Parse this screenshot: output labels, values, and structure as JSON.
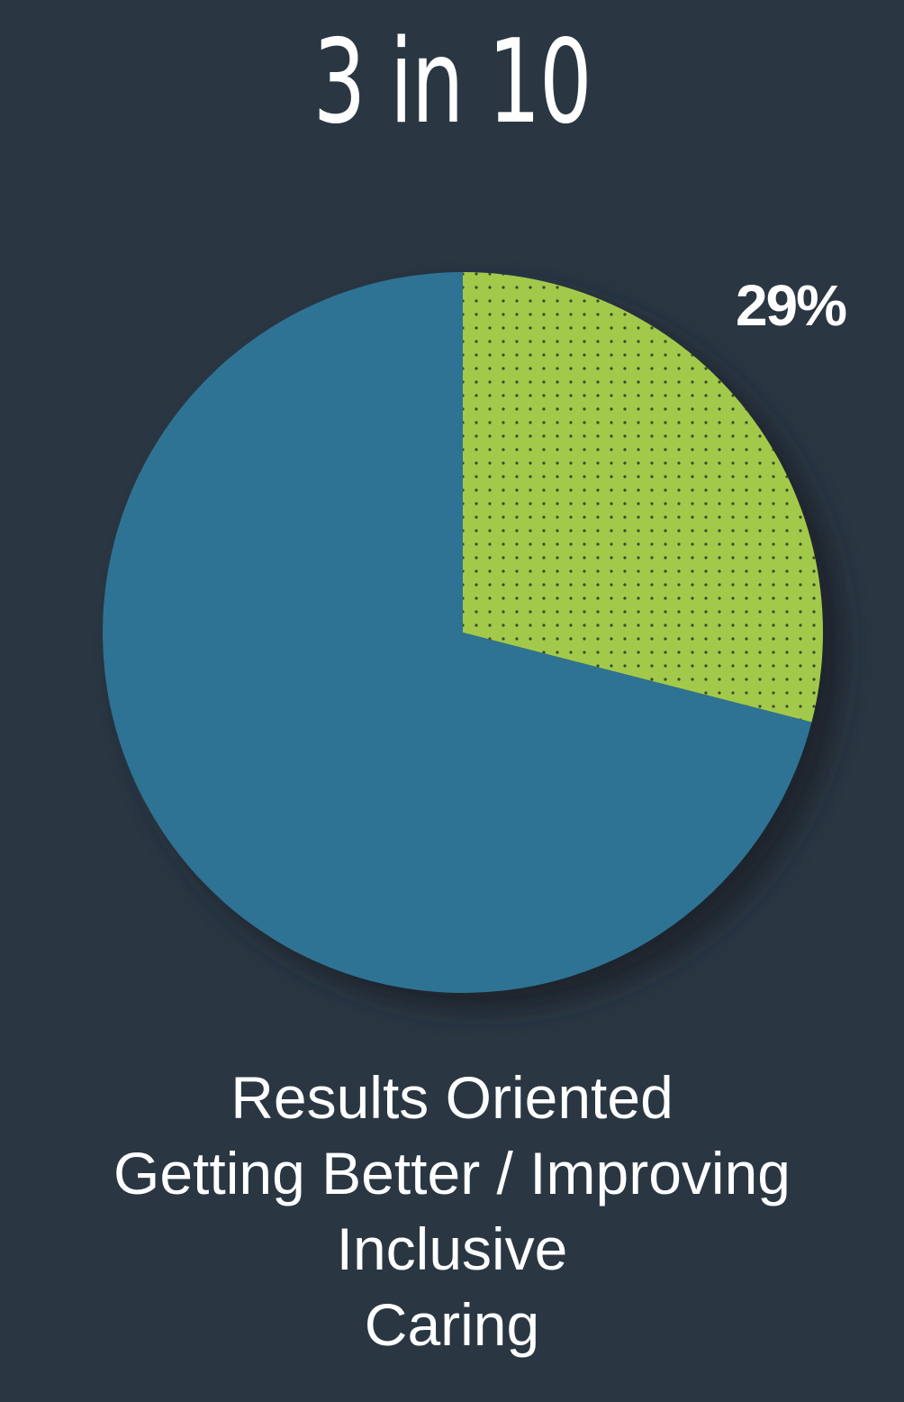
{
  "headline": "3 in 10",
  "chart_data": {
    "type": "pie",
    "slices": [
      {
        "label": "29%",
        "value": 29,
        "color": "#a3c94b",
        "pattern": "dotted",
        "show_label": true
      },
      {
        "label": "",
        "value": 71,
        "color": "#2e7393",
        "pattern": "solid",
        "show_label": false
      }
    ],
    "start_angle": "12 o'clock",
    "direction": "clockwise"
  },
  "caption": {
    "lines": [
      "Results Oriented",
      "Getting Better / Improving",
      "Inclusive",
      "Caring"
    ]
  },
  "colors": {
    "background": "#2a3743",
    "text": "#ffffff",
    "shadow": "#1b232c",
    "dot": "#3a4a2a"
  }
}
